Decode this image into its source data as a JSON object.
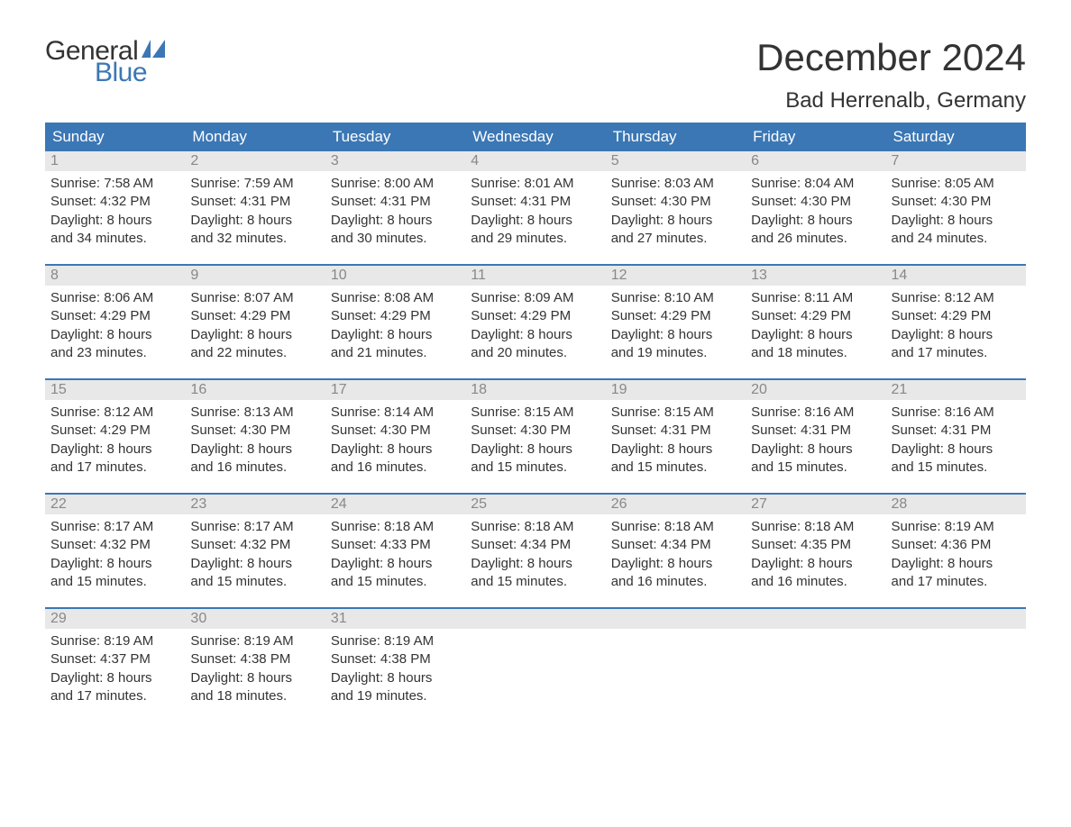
{
  "logo": {
    "text_top": "General",
    "text_bottom": "Blue",
    "sail_color": "#3b77b5"
  },
  "header": {
    "title": "December 2024",
    "location": "Bad Herrenalb, Germany"
  },
  "colors": {
    "header_bg": "#3b77b5",
    "header_text": "#ffffff",
    "day_num_bg": "#e8e8e8",
    "day_num_text": "#888888",
    "body_text": "#333333",
    "week_border": "#3b77b5"
  },
  "weekdays": [
    "Sunday",
    "Monday",
    "Tuesday",
    "Wednesday",
    "Thursday",
    "Friday",
    "Saturday"
  ],
  "weeks": [
    [
      {
        "num": "1",
        "sr": "Sunrise: 7:58 AM",
        "ss": "Sunset: 4:32 PM",
        "d1": "Daylight: 8 hours",
        "d2": "and 34 minutes."
      },
      {
        "num": "2",
        "sr": "Sunrise: 7:59 AM",
        "ss": "Sunset: 4:31 PM",
        "d1": "Daylight: 8 hours",
        "d2": "and 32 minutes."
      },
      {
        "num": "3",
        "sr": "Sunrise: 8:00 AM",
        "ss": "Sunset: 4:31 PM",
        "d1": "Daylight: 8 hours",
        "d2": "and 30 minutes."
      },
      {
        "num": "4",
        "sr": "Sunrise: 8:01 AM",
        "ss": "Sunset: 4:31 PM",
        "d1": "Daylight: 8 hours",
        "d2": "and 29 minutes."
      },
      {
        "num": "5",
        "sr": "Sunrise: 8:03 AM",
        "ss": "Sunset: 4:30 PM",
        "d1": "Daylight: 8 hours",
        "d2": "and 27 minutes."
      },
      {
        "num": "6",
        "sr": "Sunrise: 8:04 AM",
        "ss": "Sunset: 4:30 PM",
        "d1": "Daylight: 8 hours",
        "d2": "and 26 minutes."
      },
      {
        "num": "7",
        "sr": "Sunrise: 8:05 AM",
        "ss": "Sunset: 4:30 PM",
        "d1": "Daylight: 8 hours",
        "d2": "and 24 minutes."
      }
    ],
    [
      {
        "num": "8",
        "sr": "Sunrise: 8:06 AM",
        "ss": "Sunset: 4:29 PM",
        "d1": "Daylight: 8 hours",
        "d2": "and 23 minutes."
      },
      {
        "num": "9",
        "sr": "Sunrise: 8:07 AM",
        "ss": "Sunset: 4:29 PM",
        "d1": "Daylight: 8 hours",
        "d2": "and 22 minutes."
      },
      {
        "num": "10",
        "sr": "Sunrise: 8:08 AM",
        "ss": "Sunset: 4:29 PM",
        "d1": "Daylight: 8 hours",
        "d2": "and 21 minutes."
      },
      {
        "num": "11",
        "sr": "Sunrise: 8:09 AM",
        "ss": "Sunset: 4:29 PM",
        "d1": "Daylight: 8 hours",
        "d2": "and 20 minutes."
      },
      {
        "num": "12",
        "sr": "Sunrise: 8:10 AM",
        "ss": "Sunset: 4:29 PM",
        "d1": "Daylight: 8 hours",
        "d2": "and 19 minutes."
      },
      {
        "num": "13",
        "sr": "Sunrise: 8:11 AM",
        "ss": "Sunset: 4:29 PM",
        "d1": "Daylight: 8 hours",
        "d2": "and 18 minutes."
      },
      {
        "num": "14",
        "sr": "Sunrise: 8:12 AM",
        "ss": "Sunset: 4:29 PM",
        "d1": "Daylight: 8 hours",
        "d2": "and 17 minutes."
      }
    ],
    [
      {
        "num": "15",
        "sr": "Sunrise: 8:12 AM",
        "ss": "Sunset: 4:29 PM",
        "d1": "Daylight: 8 hours",
        "d2": "and 17 minutes."
      },
      {
        "num": "16",
        "sr": "Sunrise: 8:13 AM",
        "ss": "Sunset: 4:30 PM",
        "d1": "Daylight: 8 hours",
        "d2": "and 16 minutes."
      },
      {
        "num": "17",
        "sr": "Sunrise: 8:14 AM",
        "ss": "Sunset: 4:30 PM",
        "d1": "Daylight: 8 hours",
        "d2": "and 16 minutes."
      },
      {
        "num": "18",
        "sr": "Sunrise: 8:15 AM",
        "ss": "Sunset: 4:30 PM",
        "d1": "Daylight: 8 hours",
        "d2": "and 15 minutes."
      },
      {
        "num": "19",
        "sr": "Sunrise: 8:15 AM",
        "ss": "Sunset: 4:31 PM",
        "d1": "Daylight: 8 hours",
        "d2": "and 15 minutes."
      },
      {
        "num": "20",
        "sr": "Sunrise: 8:16 AM",
        "ss": "Sunset: 4:31 PM",
        "d1": "Daylight: 8 hours",
        "d2": "and 15 minutes."
      },
      {
        "num": "21",
        "sr": "Sunrise: 8:16 AM",
        "ss": "Sunset: 4:31 PM",
        "d1": "Daylight: 8 hours",
        "d2": "and 15 minutes."
      }
    ],
    [
      {
        "num": "22",
        "sr": "Sunrise: 8:17 AM",
        "ss": "Sunset: 4:32 PM",
        "d1": "Daylight: 8 hours",
        "d2": "and 15 minutes."
      },
      {
        "num": "23",
        "sr": "Sunrise: 8:17 AM",
        "ss": "Sunset: 4:32 PM",
        "d1": "Daylight: 8 hours",
        "d2": "and 15 minutes."
      },
      {
        "num": "24",
        "sr": "Sunrise: 8:18 AM",
        "ss": "Sunset: 4:33 PM",
        "d1": "Daylight: 8 hours",
        "d2": "and 15 minutes."
      },
      {
        "num": "25",
        "sr": "Sunrise: 8:18 AM",
        "ss": "Sunset: 4:34 PM",
        "d1": "Daylight: 8 hours",
        "d2": "and 15 minutes."
      },
      {
        "num": "26",
        "sr": "Sunrise: 8:18 AM",
        "ss": "Sunset: 4:34 PM",
        "d1": "Daylight: 8 hours",
        "d2": "and 16 minutes."
      },
      {
        "num": "27",
        "sr": "Sunrise: 8:18 AM",
        "ss": "Sunset: 4:35 PM",
        "d1": "Daylight: 8 hours",
        "d2": "and 16 minutes."
      },
      {
        "num": "28",
        "sr": "Sunrise: 8:19 AM",
        "ss": "Sunset: 4:36 PM",
        "d1": "Daylight: 8 hours",
        "d2": "and 17 minutes."
      }
    ],
    [
      {
        "num": "29",
        "sr": "Sunrise: 8:19 AM",
        "ss": "Sunset: 4:37 PM",
        "d1": "Daylight: 8 hours",
        "d2": "and 17 minutes."
      },
      {
        "num": "30",
        "sr": "Sunrise: 8:19 AM",
        "ss": "Sunset: 4:38 PM",
        "d1": "Daylight: 8 hours",
        "d2": "and 18 minutes."
      },
      {
        "num": "31",
        "sr": "Sunrise: 8:19 AM",
        "ss": "Sunset: 4:38 PM",
        "d1": "Daylight: 8 hours",
        "d2": "and 19 minutes."
      },
      {
        "empty": true
      },
      {
        "empty": true
      },
      {
        "empty": true
      },
      {
        "empty": true
      }
    ]
  ]
}
